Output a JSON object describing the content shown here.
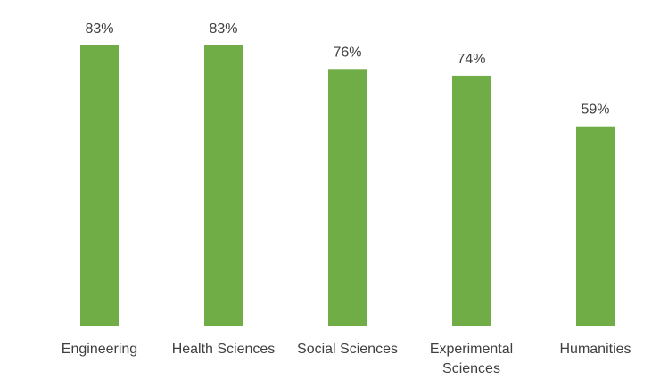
{
  "chart_data": {
    "type": "bar",
    "title": "",
    "xlabel": "",
    "ylabel": "",
    "categories": [
      [
        "Engineering"
      ],
      [
        "Health Sciences"
      ],
      [
        "Social Sciences"
      ],
      [
        "Experimental",
        "Sciences"
      ],
      [
        "Humanities"
      ]
    ],
    "series": [
      {
        "values": [
          83,
          83,
          76,
          74,
          59
        ],
        "color": "#70ad47"
      }
    ],
    "value_labels": [
      "83%",
      "83%",
      "76%",
      "74%",
      "59%"
    ],
    "ylim": [
      0,
      100
    ],
    "grid": false,
    "legend": "none"
  }
}
